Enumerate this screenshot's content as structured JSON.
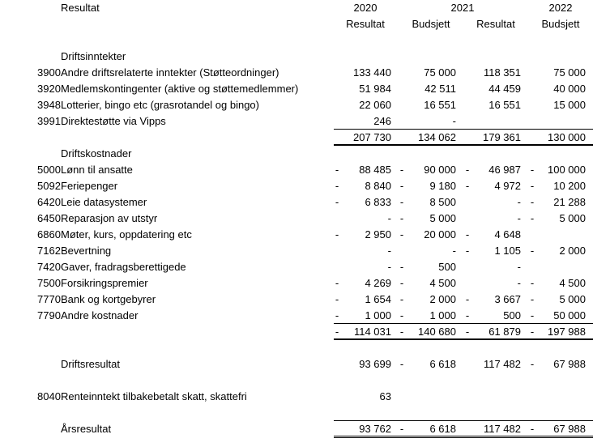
{
  "header": {
    "title": "Resultat",
    "years": [
      "2020",
      "2021",
      "2022"
    ],
    "columns": [
      "Resultat",
      "Budsjett",
      "Resultat",
      "Budsjett"
    ]
  },
  "rows": [
    {
      "label": "Driftsinntekter"
    },
    {
      "code": "3900",
      "label": "Andre driftsrelaterte inntekter (Støtteordninger)",
      "values": [
        {
          "v": "133 440"
        },
        {
          "v": "75 000"
        },
        {
          "v": "118 351"
        },
        {
          "v": "75 000"
        }
      ]
    },
    {
      "code": "3920",
      "label": "Medlemskontingenter (aktive og støttemedlemmer)",
      "values": [
        {
          "v": "51 984"
        },
        {
          "v": "42 511"
        },
        {
          "v": "44 459"
        },
        {
          "v": "40 000"
        }
      ]
    },
    {
      "code": "3948",
      "label": "Lotterier, bingo etc (grasrotandel og bingo)",
      "values": [
        {
          "v": "22 060"
        },
        {
          "v": "16 551"
        },
        {
          "v": "16 551"
        },
        {
          "v": "15 000"
        }
      ]
    },
    {
      "code": "3991",
      "label": "Direktestøtte via Vipps",
      "values": [
        {
          "v": "246"
        },
        {
          "v": "-"
        },
        {
          "v": ""
        },
        {
          "v": ""
        }
      ],
      "line": "thin"
    },
    {
      "total": true,
      "values": [
        {
          "v": "207 730"
        },
        {
          "v": "134 062"
        },
        {
          "v": "179 361"
        },
        {
          "v": "130 000"
        }
      ],
      "line": "thick"
    },
    {
      "label": "Driftskostnader"
    },
    {
      "code": "5000",
      "label": "Lønn til ansatte",
      "values": [
        {
          "neg": true,
          "v": "88 485"
        },
        {
          "neg": true,
          "v": "90 000"
        },
        {
          "neg": true,
          "v": "46 987"
        },
        {
          "neg": true,
          "v": "100 000"
        }
      ]
    },
    {
      "code": "5092",
      "label": "Feriepenger",
      "values": [
        {
          "neg": true,
          "v": "8 840"
        },
        {
          "neg": true,
          "v": "9 180"
        },
        {
          "neg": true,
          "v": "4 972"
        },
        {
          "neg": true,
          "v": "10 200"
        }
      ]
    },
    {
      "code": "6420",
      "label": "Leie datasystemer",
      "values": [
        {
          "neg": true,
          "v": "6 833"
        },
        {
          "neg": true,
          "v": "8 500"
        },
        {
          "v": "-"
        },
        {
          "neg": true,
          "v": "21 288"
        }
      ]
    },
    {
      "code": "6450",
      "label": "Reparasjon av utstyr",
      "values": [
        {
          "v": "-"
        },
        {
          "neg": true,
          "v": "5 000"
        },
        {
          "v": "-"
        },
        {
          "neg": true,
          "v": "5 000"
        }
      ]
    },
    {
      "code": "6860",
      "label": "Møter, kurs, oppdatering etc",
      "values": [
        {
          "neg": true,
          "v": "2 950"
        },
        {
          "neg": true,
          "v": "20 000"
        },
        {
          "neg": true,
          "v": "4 648"
        },
        {
          "v": ""
        }
      ]
    },
    {
      "code": "7162",
      "label": "Bevertning",
      "values": [
        {
          "v": "-"
        },
        {
          "v": "-"
        },
        {
          "neg": true,
          "v": "1 105"
        },
        {
          "neg": true,
          "v": "2 000"
        }
      ]
    },
    {
      "code": "7420",
      "label": "Gaver, fradragsberettigede",
      "values": [
        {
          "v": "-"
        },
        {
          "neg": true,
          "v": "500"
        },
        {
          "v": "-"
        },
        {
          "v": ""
        }
      ]
    },
    {
      "code": "7500",
      "label": "Forsikringspremier",
      "values": [
        {
          "neg": true,
          "v": "4 269"
        },
        {
          "neg": true,
          "v": "4 500"
        },
        {
          "v": "-"
        },
        {
          "neg": true,
          "v": "4 500"
        }
      ]
    },
    {
      "code": "7770",
      "label": "Bank og kortgebyrer",
      "values": [
        {
          "neg": true,
          "v": "1 654"
        },
        {
          "neg": true,
          "v": "2 000"
        },
        {
          "neg": true,
          "v": "3 667"
        },
        {
          "neg": true,
          "v": "5 000"
        }
      ]
    },
    {
      "code": "7790",
      "label": "Andre kostnader",
      "values": [
        {
          "neg": true,
          "v": "1 000"
        },
        {
          "neg": true,
          "v": "1 000"
        },
        {
          "neg": true,
          "v": "500"
        },
        {
          "neg": true,
          "v": "50 000"
        }
      ],
      "line": "thin"
    },
    {
      "total": true,
      "values": [
        {
          "neg": true,
          "v": "114 031"
        },
        {
          "neg": true,
          "v": "140 680"
        },
        {
          "neg": true,
          "v": "61 879"
        },
        {
          "neg": true,
          "v": "197 988"
        }
      ],
      "line": "thick"
    },
    {
      "blank": true
    },
    {
      "label": "Driftsresultat",
      "values": [
        {
          "v": "93 699"
        },
        {
          "neg": true,
          "v": "6 618"
        },
        {
          "v": "117 482"
        },
        {
          "neg": true,
          "v": "67 988"
        }
      ]
    },
    {
      "blank": true
    },
    {
      "code": "8040",
      "label": "Renteinntekt tilbakebetalt skatt, skattefri",
      "values": [
        {
          "v": "63"
        },
        {
          "v": ""
        },
        {
          "v": ""
        },
        {
          "v": ""
        }
      ]
    },
    {
      "blank": true,
      "line": "thin"
    },
    {
      "label": "Årsresultat",
      "values": [
        {
          "v": "93 762"
        },
        {
          "neg": true,
          "v": "6 618"
        },
        {
          "v": "117 482"
        },
        {
          "neg": true,
          "v": "67 988"
        }
      ],
      "line": "double"
    }
  ]
}
